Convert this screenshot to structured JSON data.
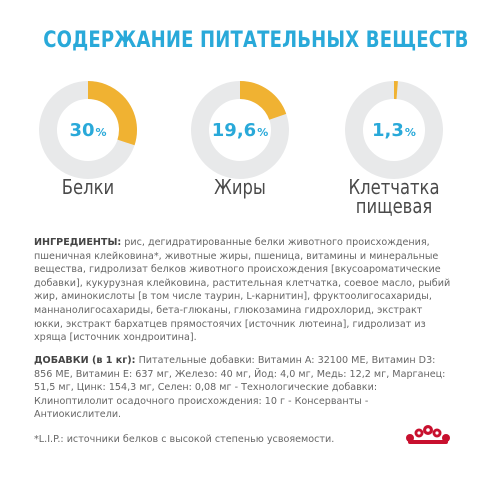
{
  "title": "СОДЕРЖАНИЕ ПИТАТЕЛЬНЫХ ВЕЩЕСТВ",
  "nutrients": [
    {
      "value": "30",
      "unit": "%",
      "fraction": 0.3,
      "label_line1": "Белки",
      "label_line2": ""
    },
    {
      "value": "19,6",
      "unit": "%",
      "fraction": 0.196,
      "label_line1": "Жиры",
      "label_line2": ""
    },
    {
      "value": "1,3",
      "unit": "%",
      "fraction": 0.013,
      "label_line1": "Клетчатка",
      "label_line2": "пищевая"
    }
  ],
  "colors": {
    "accent": "#29a9d9",
    "segment": "#f0b232",
    "ring": "#e8e9ea",
    "text": "#666666",
    "logo": "#c8102e"
  },
  "ingredients": {
    "heading": "ИНГРЕДИЕНТЫ:",
    "text": " рис, дегидратированные белки животного происхождения, пшеничная клейковина*, животные жиры, пшеница, витамины и минеральные вещества, гидролизат белков животного происхождения [вкусоароматические добавки], кукурузная клейковина, растительная клетчатка, соевое масло, рыбий жир, аминокислоты [в том числе таурин, L-карнитин], фруктоолигосахариды, маннанолигосахариды, бета-глюканы, глюкозамина гидрохлорид, экстракт юкки, экстракт бархатцев прямостоячих [источник лютеина], гидролизат из хряща [источник хондроитина]."
  },
  "additives": {
    "heading": "ДОБАВКИ (в 1 кг):",
    "text": " Питательные добавки: Витамин A: 32100 МЕ, Витамин D3: 856 МЕ, Витамин E: 637 мг, Железо: 40 мг, Йод: 4,0 мг, Медь: 12,2 мг, Марганец: 51,5 мг, Цинк: 154,3 мг, Селен: 0,08 мг - Технологические добавки: Клиноптилолит осадочного происхождения: 10 г - Консерванты - Антиокислители."
  },
  "footnote": "*L.I.P.: источники белков с высокой степенью усвояемости.",
  "logo": {
    "icon": "royal-canin-crown-icon"
  }
}
